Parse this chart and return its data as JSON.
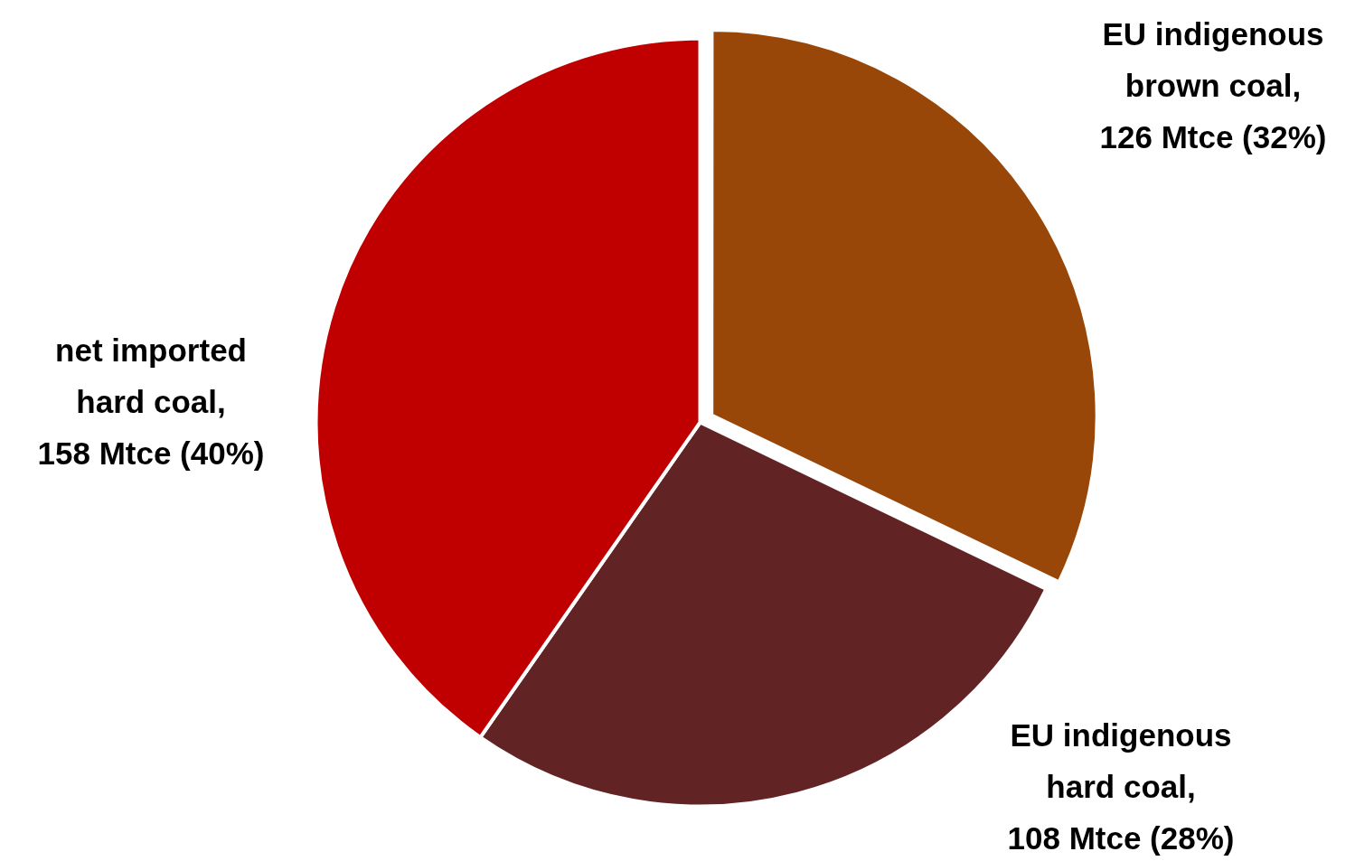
{
  "chart_data": {
    "type": "pie",
    "categories": [
      "EU indigenous\nbrown coal,\n126 Mtce (32%)",
      "EU indigenous\nhard coal,\n108 Mtce (28%)",
      "net imported\nhard coal,\n158 Mtce (40%)"
    ],
    "values": [
      126,
      108,
      158
    ],
    "colors": [
      "#994709",
      "#622325",
      "#c00000"
    ],
    "legend": false
  }
}
